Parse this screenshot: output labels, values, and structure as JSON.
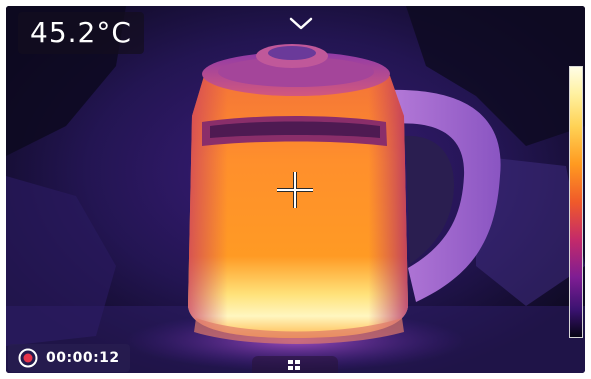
{
  "temperature": {
    "value": "45.2°C"
  },
  "recording": {
    "elapsed": "00:00:12",
    "icon": "record-icon",
    "color": "#e8344a"
  },
  "controls": {
    "collapse_icon": "chevron-down-icon",
    "menu_icon": "grid-icon",
    "crosshair_icon": "crosshair-icon"
  },
  "palette": {
    "hot": "#fffde6",
    "warm": "#ff9a20",
    "mid": "#c42a6a",
    "cool": "#3a1270",
    "cold": "#050414"
  }
}
